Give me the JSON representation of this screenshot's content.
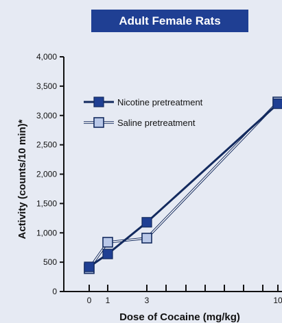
{
  "chart_data": {
    "type": "line",
    "title": "Adult Female Rats",
    "xlabel": "Dose of Cocaine (mg/kg)",
    "ylabel": "Activity (counts/10 min)*",
    "x_ticks": [
      0,
      1,
      3,
      10
    ],
    "y_ticks": [
      0,
      500,
      1000,
      1500,
      2000,
      2500,
      3000,
      3500,
      4000
    ],
    "y_tick_labels": [
      "0",
      "500",
      "1,000",
      "1,500",
      "2,000",
      "2,500",
      "3,000",
      "3,500",
      "4,000"
    ],
    "ylim": [
      0,
      4000
    ],
    "legend_position": "upper-left",
    "series": [
      {
        "name": "Nicotine pretreatment",
        "x": [
          0,
          1,
          3,
          10
        ],
        "values": [
          420,
          640,
          1180,
          3200
        ],
        "marker_fill": "#1f3f93",
        "line_color": "#132a5e"
      },
      {
        "name": "Saline pretreatment",
        "x": [
          0,
          1,
          3,
          10
        ],
        "values": [
          390,
          840,
          910,
          3230
        ],
        "marker_fill": "#b9c8e8",
        "line_color": "#132a5e"
      }
    ]
  },
  "colors": {
    "background": "#e6eaf3",
    "banner": "#1f3f93",
    "axis": "#111111"
  }
}
